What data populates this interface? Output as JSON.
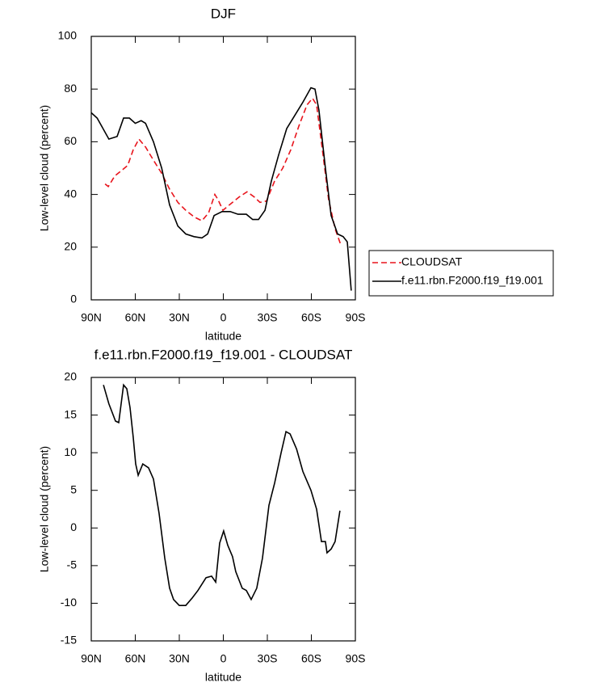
{
  "chart_data": [
    {
      "type": "line",
      "title": "DJF",
      "xlabel": "latitude",
      "ylabel": "Low-level cloud (percent)",
      "xlim": [
        90,
        -90
      ],
      "ylim": [
        0,
        100
      ],
      "xticks": [
        {
          "value": 90,
          "label": "90N"
        },
        {
          "value": 60,
          "label": "60N"
        },
        {
          "value": 30,
          "label": "30N"
        },
        0,
        {
          "value": -30,
          "label": "30S"
        },
        {
          "value": -60,
          "label": "60S"
        },
        {
          "value": -90,
          "label": "90S"
        }
      ],
      "yticks": [
        0,
        20,
        40,
        60,
        80,
        100
      ],
      "legend": "right",
      "series": [
        {
          "name": "CLOUDSAT",
          "color": "#e8141c",
          "linestyle": "dashed",
          "x": [
            80.6,
            78.4,
            74,
            69.6,
            65.2,
            61.4,
            57.5,
            53,
            47.6,
            42,
            36.6,
            31,
            25.6,
            20,
            14.6,
            10,
            5.8,
            3.6,
            0.3,
            -5.2,
            -10.7,
            -16.2,
            -21.2,
            -25,
            -29.4,
            -34.9,
            -40.5,
            -46,
            -51.5,
            -57,
            -60.8,
            -63.6,
            -68,
            -71.8,
            -76.2,
            -80
          ],
          "values": [
            44,
            43,
            47,
            49,
            51,
            57,
            61,
            58,
            53,
            48,
            42,
            37,
            34,
            31.5,
            30,
            33,
            40,
            38,
            34,
            36.5,
            39,
            41,
            39,
            37,
            37.5,
            45,
            50,
            57,
            66,
            74,
            76.5,
            74,
            55,
            38,
            27,
            21
          ]
        },
        {
          "name": "f.e11.rbn.F2000.f19_f19.001",
          "color": "#000000",
          "linestyle": "solid",
          "x": [
            90,
            86,
            78,
            72.4,
            68,
            64,
            60,
            56,
            53,
            47.6,
            42,
            36.6,
            31,
            25.6,
            20,
            14.6,
            10.7,
            6.3,
            0.8,
            -4.7,
            -10,
            -15.7,
            -20,
            -24,
            -28.4,
            -32.7,
            -37.7,
            -43.2,
            -48.7,
            -54.2,
            -59.7,
            -62.5,
            -65.2,
            -69.6,
            -73.5,
            -77.9,
            -81.7,
            -84.5,
            -87.2
          ],
          "values": [
            71,
            69,
            61,
            62,
            69,
            69,
            67,
            68,
            67,
            60,
            50,
            36,
            28,
            25,
            24,
            23.5,
            25,
            32,
            33.5,
            33.5,
            32.5,
            32.5,
            30.5,
            30.5,
            34,
            45,
            55,
            65,
            70,
            75,
            80.5,
            80,
            72,
            50,
            32,
            25,
            24,
            22,
            3.5
          ]
        }
      ]
    },
    {
      "type": "line",
      "title": "f.e11.rbn.F2000.f19_f19.001 - CLOUDSAT",
      "xlabel": "latitude",
      "ylabel": "Low-level cloud (percent)",
      "xlim": [
        90,
        -90
      ],
      "ylim": [
        -15,
        20
      ],
      "xticks": [
        {
          "value": 90,
          "label": "90N"
        },
        {
          "value": 60,
          "label": "60N"
        },
        {
          "value": 30,
          "label": "30N"
        },
        0,
        {
          "value": -30,
          "label": "30S"
        },
        {
          "value": -60,
          "label": "60S"
        },
        {
          "value": -90,
          "label": "90S"
        }
      ],
      "yticks": [
        -15,
        -10,
        -5,
        0,
        5,
        10,
        15,
        20
      ],
      "series": [
        {
          "color": "#000000",
          "linestyle": "solid",
          "x": [
            81.7,
            78,
            73.5,
            71.3,
            68,
            65.8,
            63.6,
            61.4,
            59.7,
            58,
            54.9,
            51,
            47.6,
            43.8,
            39.9,
            36.6,
            33.9,
            30,
            25.6,
            21.2,
            17.3,
            11.8,
            8,
            5.2,
            2.5,
            -0.2,
            -3,
            -6.3,
            -8.5,
            -12.9,
            -15.7,
            -19,
            -22.8,
            -26.7,
            -31.1,
            -35,
            -39.4,
            -42.7,
            -45.5,
            -49.9,
            -54.2,
            -59.7,
            -63.6,
            -66.9,
            -69.6,
            -70.7,
            -73.5,
            -76.2,
            -79.5
          ],
          "values": [
            19,
            16.5,
            14.2,
            14,
            19,
            18.5,
            16,
            12,
            8.5,
            7,
            8.5,
            8,
            6.5,
            2,
            -4,
            -8,
            -9.5,
            -10.3,
            -10.3,
            -9.3,
            -8.3,
            -6.6,
            -6.4,
            -7.2,
            -2,
            -0.4,
            -2.3,
            -3.8,
            -5.8,
            -8,
            -8.3,
            -9.5,
            -8,
            -4,
            3,
            6,
            10,
            12.8,
            12.5,
            10.5,
            7.5,
            5,
            2.5,
            -1.8,
            -1.8,
            -3.3,
            -2.8,
            -1.8,
            2.3
          ]
        }
      ]
    }
  ]
}
